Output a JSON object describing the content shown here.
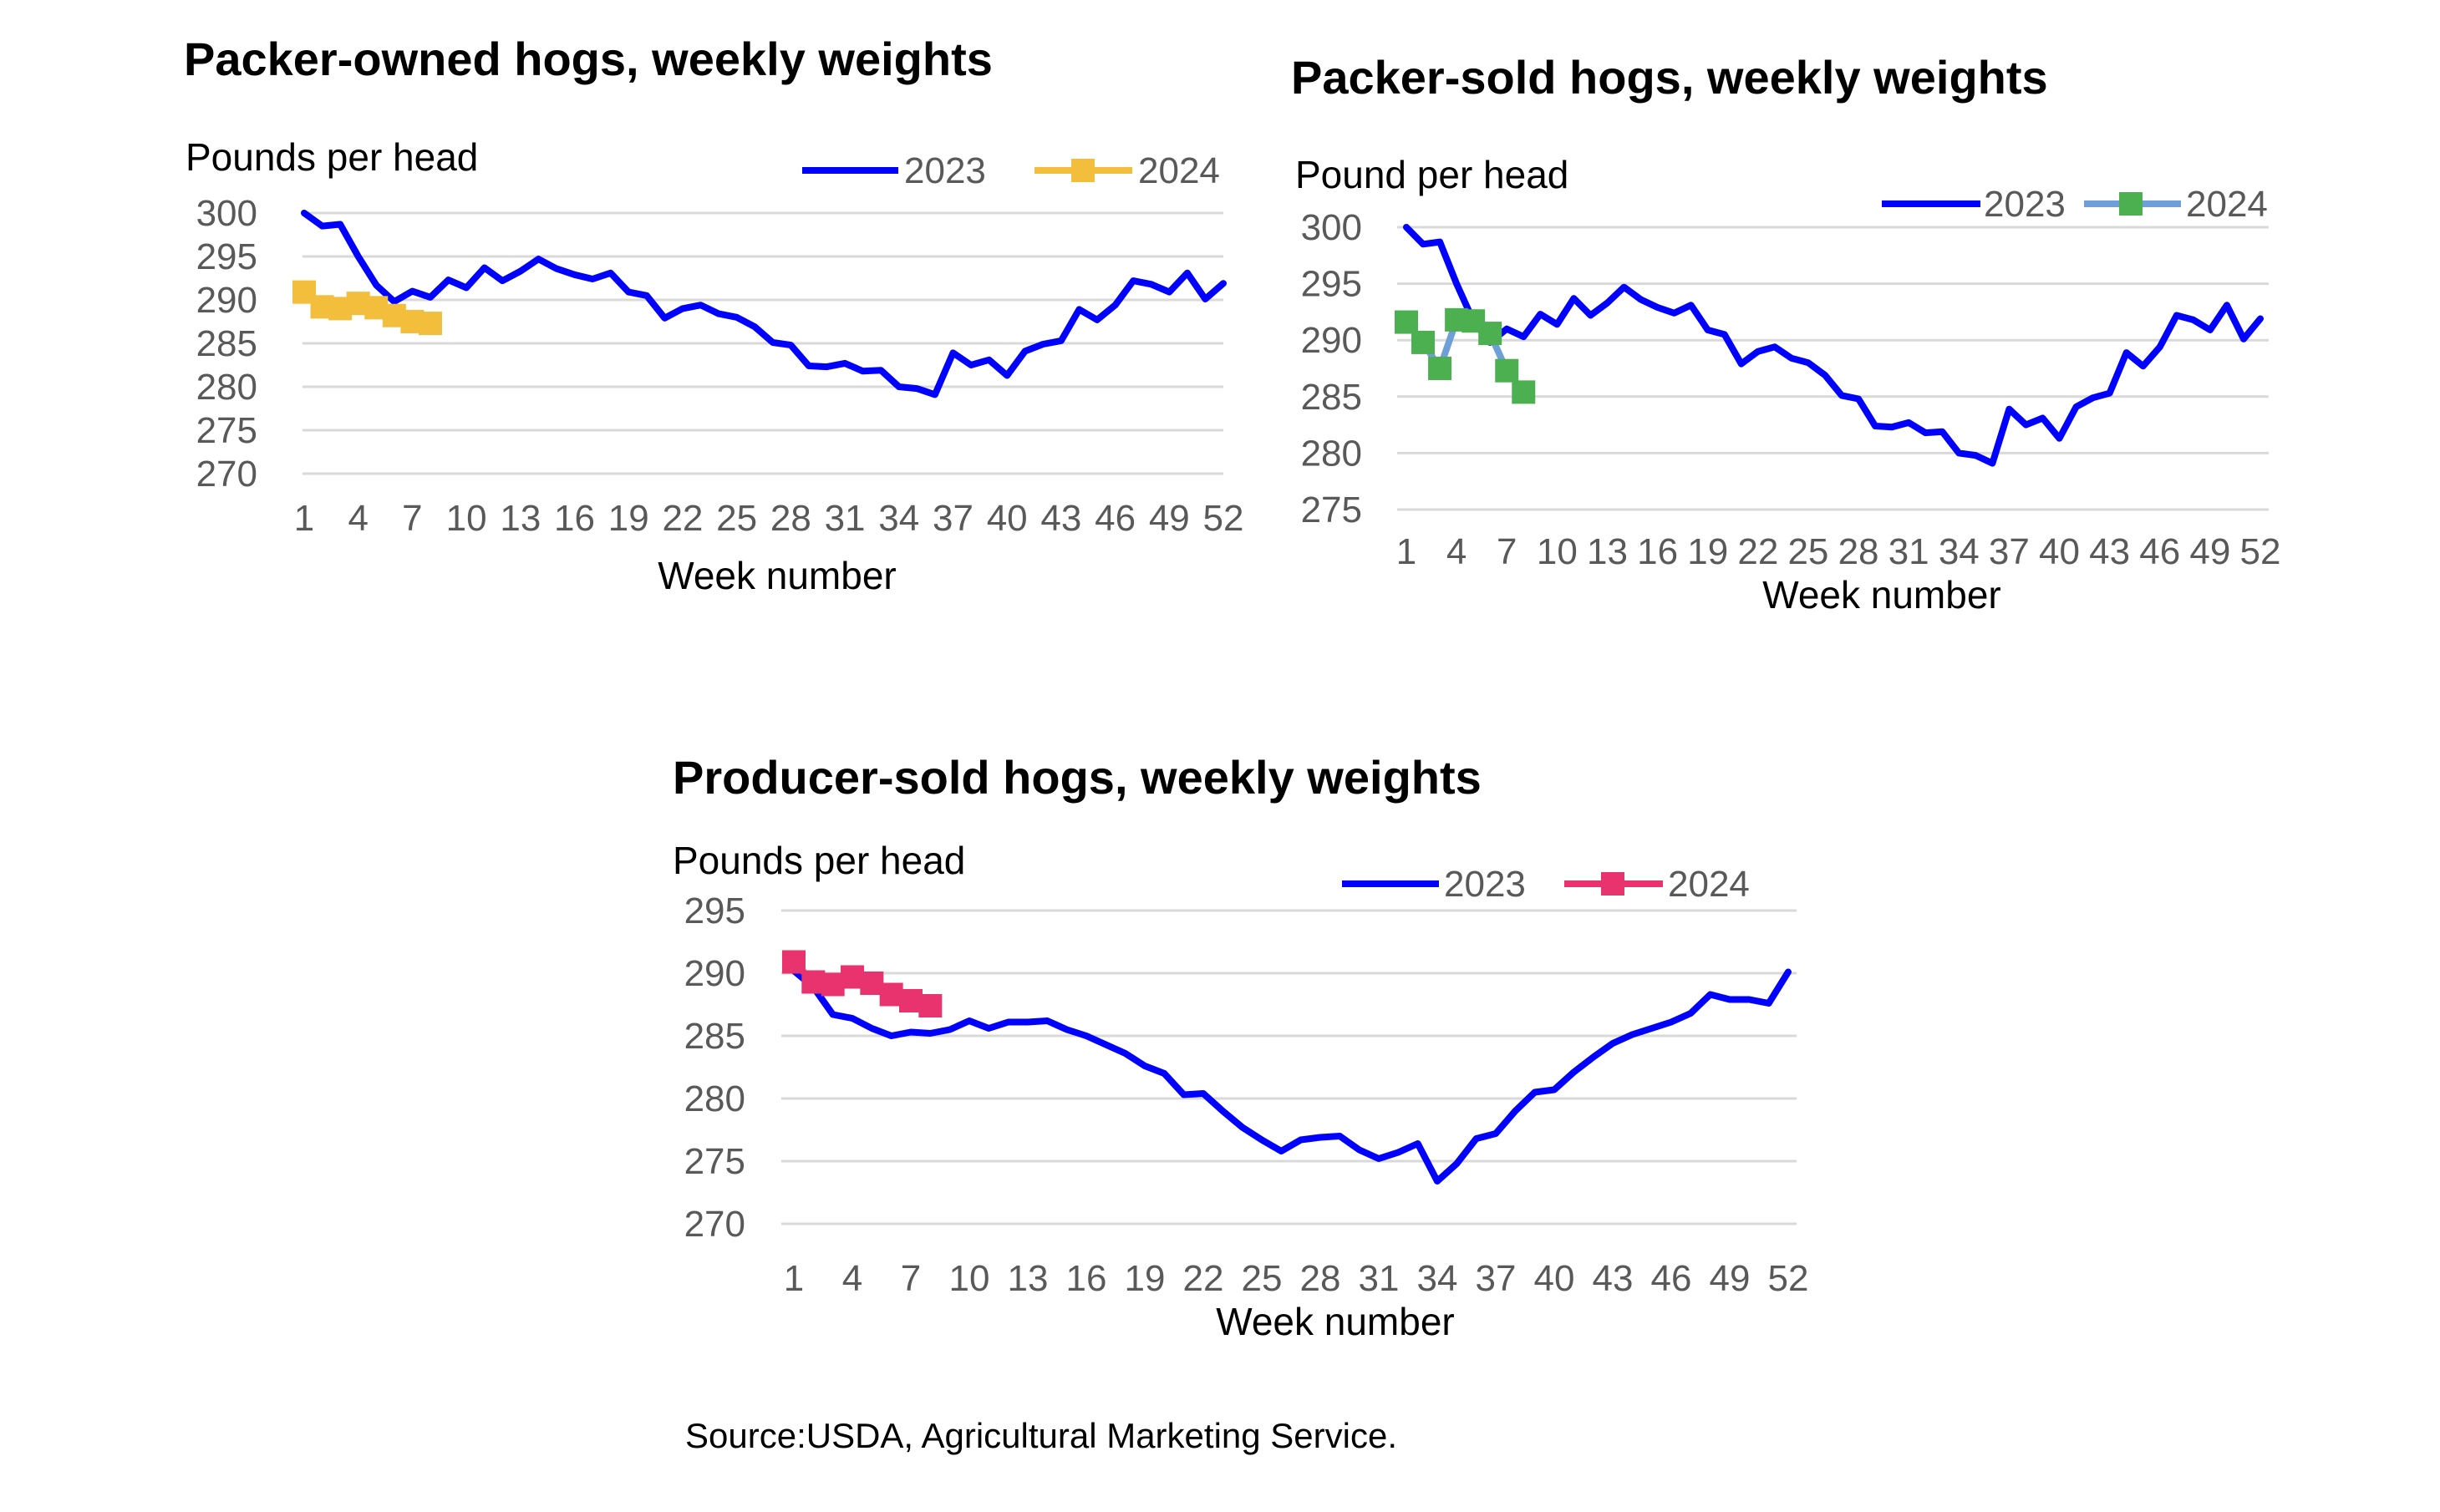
{
  "source": "Source:USDA, Agricultural Marketing Service.",
  "chart_data": [
    {
      "type": "line",
      "title": "Packer-owned hogs, weekly weights",
      "ylabel": "Pounds per head",
      "xlabel": "Week number",
      "ylim": [
        270,
        300
      ],
      "yticks": [
        "300",
        "295",
        "290",
        "285",
        "280",
        "275",
        "270"
      ],
      "xticks": [
        "1",
        "4",
        "7",
        "10",
        "13",
        "16",
        "19",
        "22",
        "25",
        "28",
        "31",
        "34",
        "37",
        "40",
        "43",
        "46",
        "49",
        "52"
      ],
      "legend": [
        "2023",
        "2024"
      ],
      "colors": {
        "2023": "#0000ff",
        "2024": "#f2be3c",
        "grid": "#d9d9d9"
      },
      "series": [
        {
          "name": "2023",
          "x_start": 1,
          "marker": false,
          "values": [
            300.0,
            298.5,
            298.7,
            295.0,
            291.7,
            289.8,
            291.0,
            290.3,
            292.3,
            291.4,
            293.7,
            292.2,
            293.3,
            294.7,
            293.6,
            292.9,
            292.4,
            293.1,
            290.9,
            290.5,
            287.9,
            289.0,
            289.4,
            288.4,
            288.0,
            286.9,
            285.1,
            284.8,
            282.4,
            282.3,
            282.7,
            281.8,
            281.9,
            280.0,
            279.8,
            279.1,
            283.9,
            282.5,
            283.1,
            281.3,
            284.1,
            284.9,
            285.3,
            288.9,
            287.7,
            289.4,
            292.2,
            291.8,
            290.9,
            293.1,
            290.1,
            291.9
          ]
        },
        {
          "name": "2024",
          "x_start": 1,
          "marker": true,
          "values": [
            290.9,
            289.2,
            289.0,
            289.6,
            289.1,
            288.2,
            287.5,
            287.3
          ]
        }
      ]
    },
    {
      "type": "line",
      "title": "Packer-sold hogs, weekly weights",
      "ylabel": "Pound per head",
      "xlabel": "Week number",
      "ylim": [
        275,
        300
      ],
      "yticks": [
        "300",
        "295",
        "290",
        "285",
        "280",
        "275"
      ],
      "xticks": [
        "1",
        "4",
        "7",
        "10",
        "13",
        "16",
        "19",
        "22",
        "25",
        "28",
        "31",
        "34",
        "37",
        "40",
        "43",
        "46",
        "49",
        "52"
      ],
      "legend": [
        "2023",
        "2024"
      ],
      "colors": {
        "2023": "#0000ff",
        "2024": "#4caf50",
        "line2024": "#6e9fd8",
        "grid": "#d9d9d9"
      },
      "series": [
        {
          "name": "2023",
          "x_start": 1,
          "marker": false,
          "values": [
            300.0,
            298.5,
            298.7,
            295.0,
            291.7,
            289.8,
            291.0,
            290.3,
            292.3,
            291.4,
            293.7,
            292.2,
            293.3,
            294.7,
            293.6,
            292.9,
            292.4,
            293.1,
            290.9,
            290.5,
            287.9,
            289.0,
            289.4,
            288.4,
            288.0,
            286.9,
            285.1,
            284.8,
            282.4,
            282.3,
            282.7,
            281.8,
            281.9,
            280.0,
            279.8,
            279.1,
            283.9,
            282.5,
            283.1,
            281.3,
            284.1,
            284.9,
            285.3,
            288.9,
            287.7,
            289.4,
            292.2,
            291.8,
            290.9,
            293.1,
            290.1,
            291.9
          ]
        },
        {
          "name": "2024",
          "x_start": 1,
          "marker": true,
          "values": [
            291.6,
            289.8,
            287.5,
            291.8,
            291.7,
            290.6,
            287.3,
            285.4
          ]
        }
      ]
    },
    {
      "type": "line",
      "title": "Producer-sold hogs, weekly weights",
      "ylabel": "Pounds per head",
      "xlabel": "Week number",
      "ylim": [
        270,
        295
      ],
      "yticks": [
        "295",
        "290",
        "285",
        "280",
        "275",
        "270"
      ],
      "xticks": [
        "1",
        "4",
        "7",
        "10",
        "13",
        "16",
        "19",
        "22",
        "25",
        "28",
        "31",
        "34",
        "37",
        "40",
        "43",
        "46",
        "49",
        "52"
      ],
      "legend": [
        "2023",
        "2024"
      ],
      "colors": {
        "2023": "#0000ff",
        "2024": "#e8336e",
        "grid": "#d9d9d9"
      },
      "series": [
        {
          "name": "2023",
          "x_start": 1,
          "marker": false,
          "values": [
            290.2,
            288.9,
            286.7,
            286.4,
            285.6,
            285.0,
            285.3,
            285.2,
            285.5,
            286.2,
            285.6,
            286.1,
            286.1,
            286.2,
            285.5,
            285.0,
            284.3,
            283.6,
            282.6,
            282.0,
            280.3,
            280.4,
            279.0,
            277.7,
            276.7,
            275.8,
            276.7,
            276.9,
            277.0,
            275.9,
            275.2,
            275.7,
            276.4,
            273.4,
            274.8,
            276.8,
            277.2,
            279.0,
            280.5,
            280.7,
            282.1,
            283.3,
            284.4,
            285.1,
            285.6,
            286.1,
            286.8,
            288.3,
            287.9,
            287.9,
            287.6,
            290.1
          ]
        },
        {
          "name": "2024",
          "x_start": 1,
          "marker": true,
          "values": [
            290.9,
            289.3,
            289.1,
            289.7,
            289.2,
            288.3,
            287.8,
            287.4
          ]
        }
      ]
    }
  ]
}
